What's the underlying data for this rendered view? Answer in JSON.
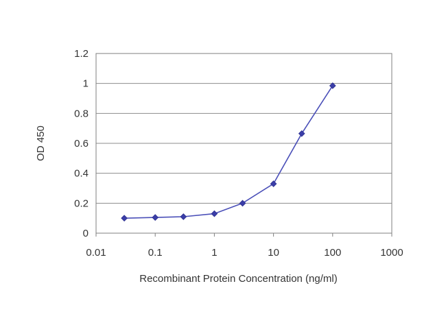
{
  "chart_data": {
    "type": "line",
    "title": "",
    "xlabel": "Recombinant Protein Concentration (ng/ml)",
    "ylabel": "OD 450",
    "x_scale": "log",
    "xlim": [
      0.01,
      1000
    ],
    "ylim": [
      0,
      1.2
    ],
    "x_ticks": [
      0.01,
      0.1,
      1,
      10,
      100,
      1000
    ],
    "x_tick_labels": [
      "0.01",
      "0.1",
      "1",
      "10",
      "100",
      "1000"
    ],
    "y_ticks": [
      0,
      0.2,
      0.4,
      0.6,
      0.8,
      1,
      1.2
    ],
    "y_tick_labels": [
      "0",
      "0.2",
      "0.4",
      "0.6",
      "0.8",
      "1",
      "1.2"
    ],
    "grid": "horizontal",
    "legend": "none",
    "series": [
      {
        "x": [
          0.03,
          0.1,
          0.3,
          1,
          3,
          10,
          30,
          100
        ],
        "y": [
          0.1,
          0.105,
          0.11,
          0.13,
          0.2,
          0.33,
          0.665,
          0.985
        ],
        "color": "#3b3ea8"
      }
    ]
  }
}
